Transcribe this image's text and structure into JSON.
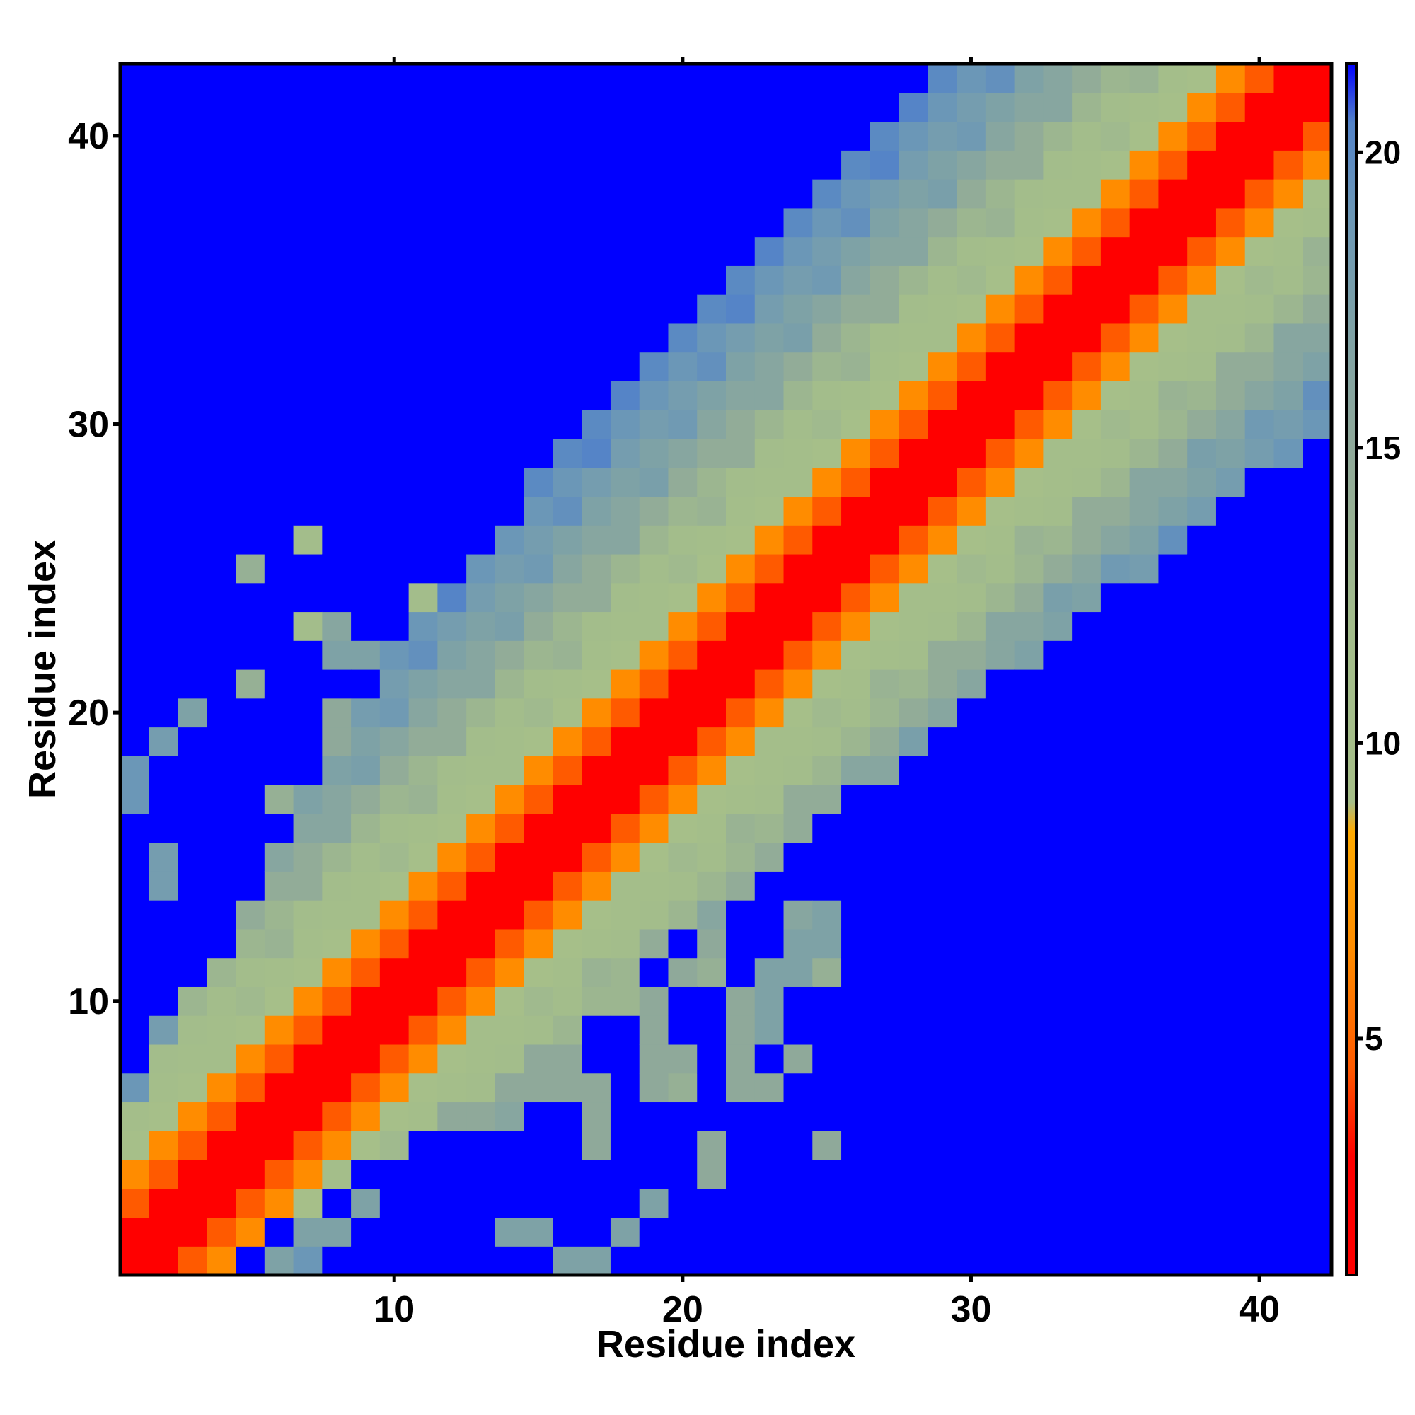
{
  "chart_data": {
    "type": "heatmap",
    "title": "",
    "xlabel": "Residue index",
    "ylabel": "Residue index",
    "n": 42,
    "xlim": [
      0.5,
      42.5
    ],
    "ylim": [
      0.5,
      42.5
    ],
    "x_ticks": [
      10,
      20,
      30,
      40
    ],
    "y_ticks": [
      10,
      20,
      30,
      40
    ],
    "colorbar": {
      "ticks": [
        5,
        10,
        15,
        20
      ],
      "range": [
        1,
        21.5
      ],
      "colors": [
        {
          "v": 1,
          "color": "#ff0000"
        },
        {
          "v": 3,
          "color": "#ff0000"
        },
        {
          "v": 4.5,
          "color": "#ff5a00"
        },
        {
          "v": 6.5,
          "color": "#ff8c00"
        },
        {
          "v": 8.5,
          "color": "#ffaa00"
        },
        {
          "v": 9,
          "color": "#a6bf88"
        },
        {
          "v": 12,
          "color": "#a3bd8b"
        },
        {
          "v": 15,
          "color": "#8fa99a"
        },
        {
          "v": 17,
          "color": "#7ea2a6"
        },
        {
          "v": 19,
          "color": "#6b97b7"
        },
        {
          "v": 20.5,
          "color": "#5383c8"
        },
        {
          "v": 21.5,
          "color": "#0000ff"
        }
      ]
    },
    "background_value": 21.5,
    "band": {
      "description_values_by_offset": [
        1,
        2,
        4.5,
        6.5,
        9.5,
        11,
        12,
        13,
        14.5,
        16,
        17,
        18,
        19,
        20
      ],
      "extent_upper": {
        "1": 5,
        "10": 12,
        "20": 13,
        "30": 13,
        "42": 14
      },
      "extent_lower": {
        "1": 3,
        "10": 7,
        "20": 9,
        "30": 12,
        "42": 10
      }
    },
    "offband": [
      [
        1,
        18,
        19
      ],
      [
        1,
        17,
        19
      ],
      [
        2,
        19,
        18
      ],
      [
        2,
        15,
        18
      ],
      [
        2,
        14,
        18
      ],
      [
        3,
        20,
        17
      ],
      [
        5,
        21,
        14
      ],
      [
        5,
        25,
        14
      ],
      [
        6,
        17,
        14
      ],
      [
        7,
        23,
        12
      ],
      [
        7,
        26,
        12
      ],
      [
        8,
        23,
        16
      ],
      [
        8,
        22,
        17
      ],
      [
        9,
        22,
        17
      ],
      [
        10,
        22,
        16
      ],
      [
        11,
        22,
        15
      ],
      [
        11,
        23,
        16
      ],
      [
        12,
        22,
        16
      ],
      [
        13,
        22,
        15
      ],
      [
        13,
        20,
        15
      ],
      [
        14,
        20,
        15
      ],
      [
        8,
        20,
        15
      ],
      [
        9,
        20,
        15
      ],
      [
        10,
        20,
        15
      ],
      [
        11,
        20,
        15
      ],
      [
        12,
        20,
        15
      ],
      [
        11,
        24,
        12
      ],
      [
        12,
        24,
        15
      ],
      [
        12,
        23,
        16
      ],
      [
        8,
        19,
        15
      ],
      [
        9,
        19,
        15
      ],
      [
        10,
        19,
        15
      ],
      [
        11,
        19,
        15
      ],
      [
        12,
        19,
        15
      ],
      [
        13,
        19,
        14
      ],
      [
        8,
        16,
        14
      ],
      [
        8,
        15,
        14
      ],
      [
        9,
        15,
        14
      ],
      [
        10,
        15,
        14
      ],
      [
        11,
        15,
        14
      ],
      [
        12,
        15,
        13
      ],
      [
        10,
        16,
        15
      ],
      [
        11,
        16,
        15
      ],
      [
        12,
        16,
        14
      ],
      [
        7,
        14,
        15
      ],
      [
        8,
        14,
        15
      ],
      [
        9,
        14,
        15
      ],
      [
        10,
        14,
        14
      ],
      [
        11,
        14,
        14
      ],
      [
        7,
        13,
        14
      ],
      [
        8,
        13,
        14
      ],
      [
        9,
        13,
        14
      ],
      [
        10,
        13,
        14
      ],
      [
        7,
        12,
        15
      ],
      [
        8,
        12,
        15
      ],
      [
        9,
        12,
        14
      ],
      [
        6,
        11,
        17
      ],
      [
        6,
        10,
        17
      ],
      [
        6,
        9,
        17
      ],
      [
        7,
        10,
        14
      ],
      [
        7,
        11,
        13
      ],
      [
        5,
        9,
        17
      ],
      [
        5,
        8,
        16
      ],
      [
        4,
        8,
        15
      ],
      [
        3,
        8,
        17
      ],
      [
        3,
        9,
        17
      ],
      [
        2,
        9,
        18
      ],
      [
        2,
        8,
        18
      ],
      [
        1,
        7,
        19
      ],
      [
        1,
        6,
        19
      ],
      [
        1,
        5,
        17
      ],
      [
        1,
        4,
        15
      ],
      [
        13,
        9,
        15
      ],
      [
        14,
        9,
        15
      ],
      [
        15,
        9,
        15
      ],
      [
        14,
        8,
        15
      ],
      [
        15,
        8,
        15
      ],
      [
        16,
        8,
        15
      ],
      [
        13,
        7,
        15
      ],
      [
        14,
        7,
        15
      ],
      [
        15,
        7,
        15
      ],
      [
        16,
        7,
        15
      ],
      [
        12,
        6,
        15
      ],
      [
        13,
        6,
        15
      ],
      [
        14,
        6,
        16
      ],
      [
        15,
        10,
        15
      ],
      [
        16,
        10,
        15
      ],
      [
        16,
        11,
        15
      ],
      [
        17,
        11,
        14
      ],
      [
        17,
        12,
        13
      ],
      [
        18,
        12,
        13
      ],
      [
        18,
        10,
        13
      ],
      [
        19,
        10,
        15
      ],
      [
        19,
        9,
        15
      ],
      [
        19,
        8,
        15
      ],
      [
        20,
        8,
        15
      ],
      [
        19,
        7,
        15
      ],
      [
        20,
        7,
        14
      ],
      [
        20,
        11,
        15
      ],
      [
        21,
        11,
        14
      ],
      [
        21,
        12,
        15
      ],
      [
        22,
        10,
        15
      ],
      [
        22,
        9,
        15
      ],
      [
        22,
        8,
        15
      ],
      [
        22,
        7,
        15
      ],
      [
        23,
        9,
        17
      ],
      [
        23,
        10,
        17
      ],
      [
        23,
        11,
        17
      ],
      [
        23,
        7,
        15
      ],
      [
        24,
        8,
        15
      ],
      [
        24,
        11,
        17
      ],
      [
        24,
        12,
        17
      ],
      [
        24,
        13,
        16
      ],
      [
        25,
        11,
        14
      ],
      [
        25,
        12,
        17
      ],
      [
        25,
        13,
        17
      ],
      [
        17,
        7,
        15
      ],
      [
        17,
        6,
        15
      ],
      [
        17,
        5,
        15
      ],
      [
        21,
        5,
        15
      ],
      [
        21,
        4,
        15
      ],
      [
        25,
        5,
        15
      ],
      [
        19,
        3,
        17
      ],
      [
        14,
        2,
        17
      ],
      [
        15,
        2,
        17
      ],
      [
        16,
        1,
        17
      ],
      [
        17,
        1,
        17
      ],
      [
        18,
        2,
        17
      ],
      [
        9,
        3,
        17
      ],
      [
        8,
        2,
        17
      ],
      [
        7,
        2,
        17
      ],
      [
        6,
        1,
        17
      ],
      [
        7,
        1,
        19
      ]
    ]
  }
}
